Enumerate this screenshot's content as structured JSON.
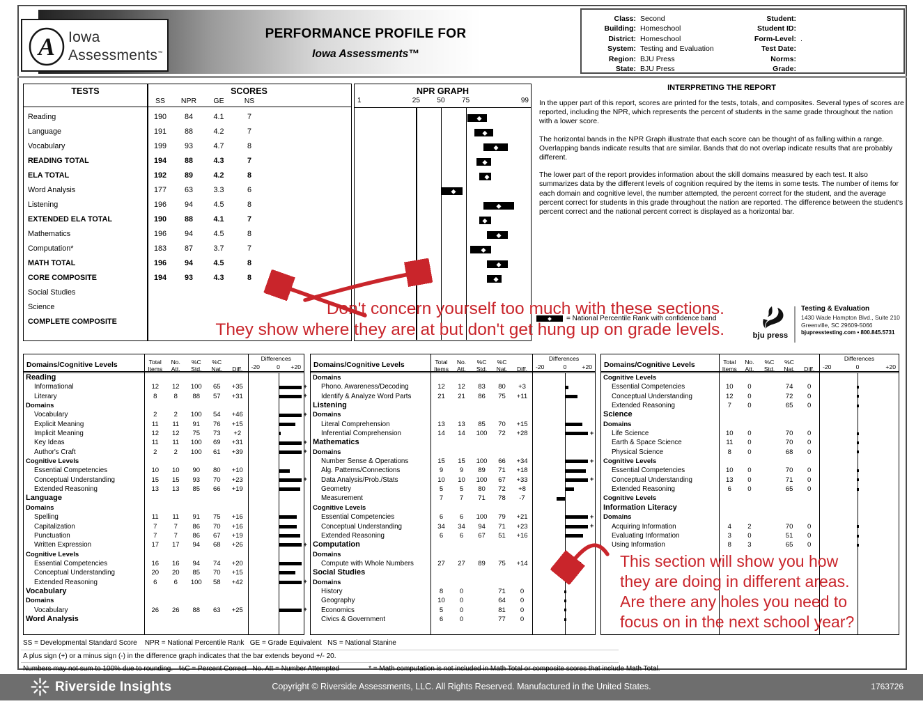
{
  "header": {
    "logo": {
      "line1": "Iowa",
      "line2": "Assessments",
      "tm": "TM",
      "monogram": "A"
    },
    "title_line1": "PERFORMANCE PROFILE FOR",
    "title_line2": "Iowa Assessments™",
    "info_left": [
      {
        "label": "Class:",
        "value": "Second"
      },
      {
        "label": "Building:",
        "value": "Homeschool"
      },
      {
        "label": "District:",
        "value": "Homeschool"
      },
      {
        "label": "System:",
        "value": "Testing and Evaluation"
      },
      {
        "label": "Region:",
        "value": "BJU Press"
      },
      {
        "label": "State:",
        "value": "BJU Press"
      }
    ],
    "info_right": [
      {
        "label": "Student:",
        "value": ""
      },
      {
        "label": "Student ID:",
        "value": ""
      },
      {
        "label": "Form-Level:",
        "value": "."
      },
      {
        "label": "Test Date:",
        "value": ""
      },
      {
        "label": "Norms:",
        "value": ""
      },
      {
        "label": "Grade:",
        "value": ""
      }
    ]
  },
  "tests_table": {
    "col_tests": "TESTS",
    "col_scores": "SCORES",
    "score_cols": [
      "SS",
      "NPR",
      "GE",
      "NS"
    ],
    "rows": [
      {
        "name": "Reading",
        "bold": false,
        "ss": "190",
        "npr": "84",
        "ge": "4.1",
        "ns": "7"
      },
      {
        "name": "Language",
        "bold": false,
        "ss": "191",
        "npr": "88",
        "ge": "4.2",
        "ns": "7"
      },
      {
        "name": "Vocabulary",
        "bold": false,
        "ss": "199",
        "npr": "93",
        "ge": "4.7",
        "ns": "8"
      },
      {
        "name": "READING TOTAL",
        "bold": true,
        "ss": "194",
        "npr": "88",
        "ge": "4.3",
        "ns": "7"
      },
      {
        "name": "ELA TOTAL",
        "bold": true,
        "ss": "192",
        "npr": "89",
        "ge": "4.2",
        "ns": "8"
      },
      {
        "name": "Word Analysis",
        "bold": false,
        "ss": "177",
        "npr": "63",
        "ge": "3.3",
        "ns": "6"
      },
      {
        "name": "Listening",
        "bold": false,
        "ss": "196",
        "npr": "94",
        "ge": "4.5",
        "ns": "8"
      },
      {
        "name": "EXTENDED ELA TOTAL",
        "bold": true,
        "ss": "190",
        "npr": "88",
        "ge": "4.1",
        "ns": "7"
      },
      {
        "name": "Mathematics",
        "bold": false,
        "ss": "196",
        "npr": "94",
        "ge": "4.5",
        "ns": "8"
      },
      {
        "name": "Computation*",
        "bold": false,
        "ss": "183",
        "npr": "87",
        "ge": "3.7",
        "ns": "7"
      },
      {
        "name": "MATH TOTAL",
        "bold": true,
        "ss": "196",
        "npr": "94",
        "ge": "4.5",
        "ns": "8"
      },
      {
        "name": "CORE COMPOSITE",
        "bold": true,
        "ss": "194",
        "npr": "93",
        "ge": "4.3",
        "ns": "8"
      },
      {
        "name": "Social Studies",
        "bold": false,
        "ss": "",
        "npr": "",
        "ge": "",
        "ns": ""
      },
      {
        "name": "Science",
        "bold": false,
        "ss": "",
        "npr": "",
        "ge": "",
        "ns": ""
      },
      {
        "name": "COMPLETE COMPOSITE",
        "bold": true,
        "ss": "",
        "npr": "",
        "ge": "",
        "ns": ""
      }
    ]
  },
  "npr_graph": {
    "title": "NPR GRAPH",
    "ticks": [
      "1",
      "25",
      "50",
      "75",
      "99"
    ],
    "gridlines": [
      25,
      50,
      75
    ],
    "bands": [
      {
        "npr": 84,
        "lo": 76,
        "hi": 89
      },
      {
        "npr": 88,
        "lo": 81,
        "hi": 92
      },
      {
        "npr": 93,
        "lo": 87,
        "hi": 96
      },
      {
        "npr": 88,
        "lo": 82,
        "hi": 91
      },
      {
        "npr": 89,
        "lo": 84,
        "hi": 91
      },
      {
        "npr": 63,
        "lo": 50,
        "hi": 72
      },
      {
        "npr": 94,
        "lo": 87,
        "hi": 97
      },
      {
        "npr": 88,
        "lo": 84,
        "hi": 91
      },
      {
        "npr": 94,
        "lo": 89,
        "hi": 96
      },
      {
        "npr": 87,
        "lo": 78,
        "hi": 91
      },
      {
        "npr": 94,
        "lo": 89,
        "hi": 96
      },
      {
        "npr": 93,
        "lo": 89,
        "hi": 95
      }
    ],
    "legend_label": "= National Percentile Rank with confidence band"
  },
  "interpreting": {
    "title": "INTERPRETING THE REPORT",
    "p1": "In the upper part of this report, scores are printed for the tests, totals, and composites. Several types of scores are reported, including the NPR, which represents the percent of students in the same grade throughout the nation with a lower score.",
    "p2": "The horizontal bands in the NPR Graph illustrate that each score can be thought of as falling within a range. Overlapping bands indicate results that are similar. Bands that do not overlap indicate results that are probably different.",
    "p3": "The lower part of the report provides information about the skill domains measured by each test. It also summarizes data by the different levels of cognition required by the items in some tests. The number of items for each domain and cognitive level, the number attempted, the percent correct for the student, and the average percent correct for students in this grade throughout the nation are reported. The difference between the student's percent correct and the national percent correct is displayed as a horizontal bar."
  },
  "bjupress": {
    "name": "bju press",
    "dept": "Testing & Evaluation",
    "address1": "1430 Wade Hampton Blvd., Suite 210",
    "address2": "Greenville, SC 29609-5066",
    "contact": "bjupresstesting.com  •  800.845.5731"
  },
  "domains_tables": {
    "col1": "Domains/Cognitive Levels",
    "num_cols": [
      [
        "Total",
        "Items"
      ],
      [
        "No.",
        "Att."
      ],
      [
        "%C",
        "Std."
      ],
      [
        "%C",
        "Nat."
      ],
      [
        "",
        "Diff."
      ]
    ],
    "diff_title": "Differences",
    "diff_min": "-20",
    "diff_zero": "0",
    "diff_max": "+20",
    "tables": [
      {
        "rows": [
          [
            "section",
            "Reading"
          ],
          [
            "data",
            "Informational",
            "12",
            "12",
            "100",
            "65",
            "+35",
            35
          ],
          [
            "data",
            "Literary",
            "8",
            "8",
            "88",
            "57",
            "+31",
            31
          ],
          [
            "sub",
            "Domains"
          ],
          [
            "data",
            "Vocabulary",
            "2",
            "2",
            "100",
            "54",
            "+46",
            46
          ],
          [
            "data",
            "Explicit Meaning",
            "11",
            "11",
            "91",
            "76",
            "+15",
            15
          ],
          [
            "data",
            "Implicit Meaning",
            "12",
            "12",
            "75",
            "73",
            "+2",
            2
          ],
          [
            "data",
            "Key Ideas",
            "11",
            "11",
            "100",
            "69",
            "+31",
            31
          ],
          [
            "data",
            "Author's Craft",
            "2",
            "2",
            "100",
            "61",
            "+39",
            39
          ],
          [
            "sub",
            "Cognitive Levels"
          ],
          [
            "data",
            "Essential Competencies",
            "10",
            "10",
            "90",
            "80",
            "+10",
            10
          ],
          [
            "data",
            "Conceptual Understanding",
            "15",
            "15",
            "93",
            "70",
            "+23",
            23
          ],
          [
            "data",
            "Extended Reasoning",
            "13",
            "13",
            "85",
            "66",
            "+19",
            19
          ],
          [
            "section",
            "Language"
          ],
          [
            "sub",
            "Domains"
          ],
          [
            "data",
            "Spelling",
            "11",
            "11",
            "91",
            "75",
            "+16",
            16
          ],
          [
            "data",
            "Capitalization",
            "7",
            "7",
            "86",
            "70",
            "+16",
            16
          ],
          [
            "data",
            "Punctuation",
            "7",
            "7",
            "86",
            "67",
            "+19",
            19
          ],
          [
            "data",
            "Written Expression",
            "17",
            "17",
            "94",
            "68",
            "+26",
            26
          ],
          [
            "sub",
            "Cognitive Levels"
          ],
          [
            "data",
            "Essential Competencies",
            "16",
            "16",
            "94",
            "74",
            "+20",
            20
          ],
          [
            "data",
            "Conceptual Understanding",
            "20",
            "20",
            "85",
            "70",
            "+15",
            15
          ],
          [
            "data",
            "Extended Reasoning",
            "6",
            "6",
            "100",
            "58",
            "+42",
            42
          ],
          [
            "section",
            "Vocabulary"
          ],
          [
            "sub",
            "Domains"
          ],
          [
            "data",
            "Vocabulary",
            "26",
            "26",
            "88",
            "63",
            "+25",
            25
          ],
          [
            "section",
            "Word Analysis"
          ]
        ]
      },
      {
        "rows": [
          [
            "sub",
            "Domains"
          ],
          [
            "data",
            "Phono. Awareness/Decoding",
            "12",
            "12",
            "83",
            "80",
            "+3",
            3
          ],
          [
            "data",
            "Identify & Analyze Word Parts",
            "21",
            "21",
            "86",
            "75",
            "+11",
            11
          ],
          [
            "section",
            "Listening"
          ],
          [
            "sub",
            "Domains"
          ],
          [
            "data",
            "Literal Comprehension",
            "13",
            "13",
            "85",
            "70",
            "+15",
            15
          ],
          [
            "data",
            "Inferential Comprehension",
            "14",
            "14",
            "100",
            "72",
            "+28",
            28
          ],
          [
            "section",
            "Mathematics"
          ],
          [
            "sub",
            "Domains"
          ],
          [
            "data",
            "Number Sense & Operations",
            "15",
            "15",
            "100",
            "66",
            "+34",
            34
          ],
          [
            "data",
            "Alg. Patterns/Connections",
            "9",
            "9",
            "89",
            "71",
            "+18",
            18
          ],
          [
            "data",
            "Data Analysis/Prob./Stats",
            "10",
            "10",
            "100",
            "67",
            "+33",
            33
          ],
          [
            "data",
            "Geometry",
            "5",
            "5",
            "80",
            "72",
            "+8",
            8
          ],
          [
            "data",
            "Measurement",
            "7",
            "7",
            "71",
            "78",
            "-7",
            -7
          ],
          [
            "sub",
            "Cognitive Levels"
          ],
          [
            "data",
            "Essential Competencies",
            "6",
            "6",
            "100",
            "79",
            "+21",
            21
          ],
          [
            "data",
            "Conceptual Understanding",
            "34",
            "34",
            "94",
            "71",
            "+23",
            23
          ],
          [
            "data",
            "Extended Reasoning",
            "6",
            "6",
            "67",
            "51",
            "+16",
            16
          ],
          [
            "section",
            "Computation"
          ],
          [
            "sub",
            "Domains"
          ],
          [
            "data",
            "Compute with Whole Numbers",
            "27",
            "27",
            "89",
            "75",
            "+14",
            14
          ],
          [
            "section",
            "Social Studies"
          ],
          [
            "sub",
            "Domains"
          ],
          [
            "data",
            "History",
            "8",
            "0",
            "",
            "71",
            "0",
            0
          ],
          [
            "data",
            "Geography",
            "10",
            "0",
            "",
            "64",
            "0",
            0
          ],
          [
            "data",
            "Economics",
            "5",
            "0",
            "",
            "81",
            "0",
            0
          ],
          [
            "data",
            "Civics & Government",
            "6",
            "0",
            "",
            "77",
            "0",
            0
          ]
        ]
      },
      {
        "rows": [
          [
            "sub",
            "Cognitive Levels"
          ],
          [
            "data",
            "Essential Competencies",
            "10",
            "0",
            "",
            "74",
            "0",
            0
          ],
          [
            "data",
            "Conceptual Understanding",
            "12",
            "0",
            "",
            "72",
            "0",
            0
          ],
          [
            "data",
            "Extended Reasoning",
            "7",
            "0",
            "",
            "65",
            "0",
            0
          ],
          [
            "section",
            "Science"
          ],
          [
            "sub",
            "Domains"
          ],
          [
            "data",
            "Life Science",
            "10",
            "0",
            "",
            "70",
            "0",
            0
          ],
          [
            "data",
            "Earth & Space Science",
            "11",
            "0",
            "",
            "70",
            "0",
            0
          ],
          [
            "data",
            "Physical Science",
            "8",
            "0",
            "",
            "68",
            "0",
            0
          ],
          [
            "sub",
            "Cognitive Levels"
          ],
          [
            "data",
            "Essential Competencies",
            "10",
            "0",
            "",
            "70",
            "0",
            0
          ],
          [
            "data",
            "Conceptual Understanding",
            "13",
            "0",
            "",
            "71",
            "0",
            0
          ],
          [
            "data",
            "Extended Reasoning",
            "6",
            "0",
            "",
            "65",
            "0",
            0
          ],
          [
            "sub",
            "Cognitive Levels"
          ],
          [
            "section",
            "Information Literacy"
          ],
          [
            "sub",
            "Domains"
          ],
          [
            "data",
            "Acquiring Information",
            "4",
            "2",
            "",
            "70",
            "0",
            0
          ],
          [
            "data",
            "Evaluating Information",
            "3",
            "0",
            "",
            "51",
            "0",
            0
          ],
          [
            "data",
            "Using Information",
            "8",
            "3",
            "",
            "65",
            "0",
            0
          ]
        ]
      }
    ]
  },
  "footnotes": {
    "f1": "SS = Developmental Standard Score    NPR = National Percentile Rank   GE = Grade Equivalent   NS = National Stanine",
    "f2": "A plus sign (+) or a minus sign (-) in the difference graph indicates that the bar extends beyond +/- 20.",
    "f3a": "Numbers may not sum to 100% due to rounding.   %C = Percent Correct   No. Att = Number Attempted",
    "f3b": "* = Math computation is not included in Math Total or composite scores that include Math Total."
  },
  "footer": {
    "brand": "Riverside Insights",
    "copyright": "Copyright © Riverside Assessments, LLC. All Rights Reserved. Manufactured in the United States.",
    "code": "1763726"
  },
  "annotations": {
    "color": "#c9252b",
    "note1_line1": "Don't concern yourself too much with these sections.",
    "note1_line2": "They show where they are at but don't get hung up on grade levels.",
    "note2_line1": "This section will show you how",
    "note2_line2": "they are doing in different areas.",
    "note2_line3": "Are there any holes you need to",
    "note2_line4": "focus on in the next school year?"
  }
}
